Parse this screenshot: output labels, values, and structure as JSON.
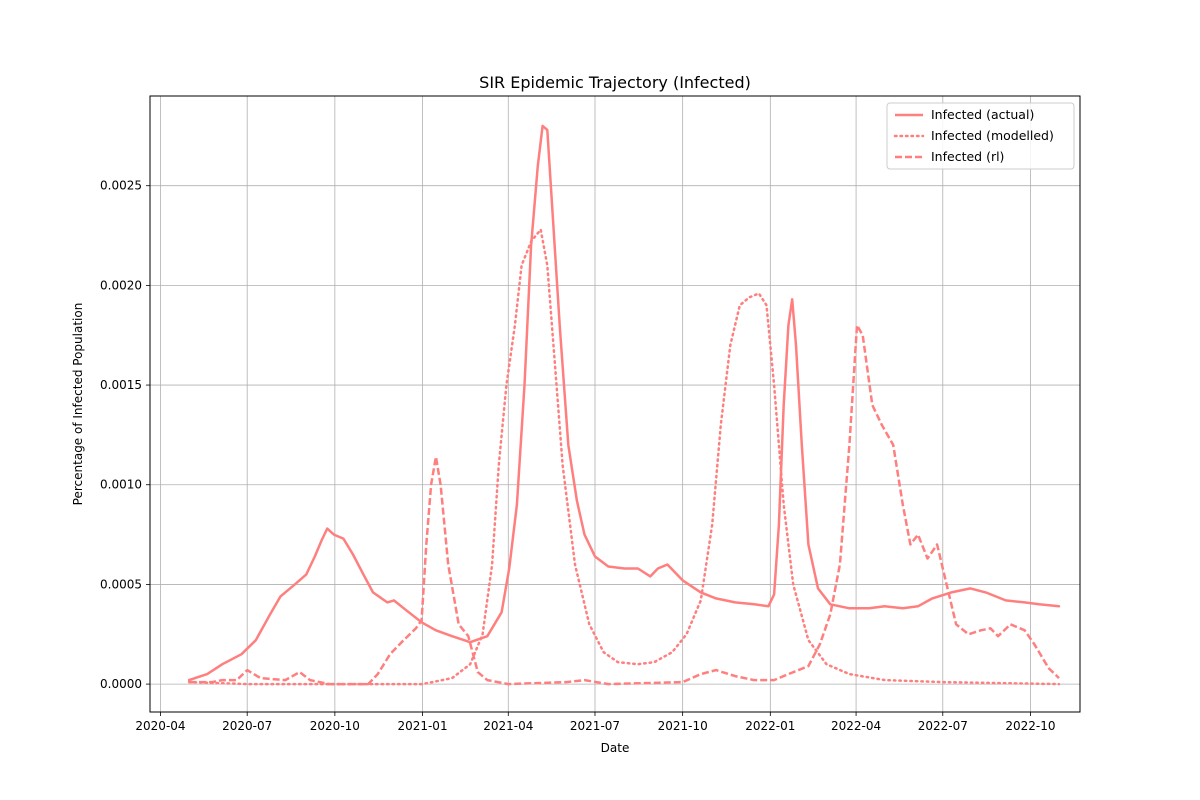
{
  "chart_data": {
    "type": "line",
    "title": "SIR Epidemic Trajectory (Infected)",
    "xlabel": "Date",
    "ylabel": "Percentage of Infected Population",
    "xlim": [
      "2020-03-21",
      "2022-11-22"
    ],
    "ylim": [
      -0.00014,
      0.00295
    ],
    "x_ticks": [
      "2020-04-01",
      "2020-07-01",
      "2020-10-01",
      "2021-01-01",
      "2021-04-01",
      "2021-07-01",
      "2021-10-01",
      "2022-01-01",
      "2022-04-01",
      "2022-07-01",
      "2022-10-01"
    ],
    "x_tick_labels": [
      "2020-04",
      "2020-07",
      "2020-10",
      "2021-01",
      "2021-04",
      "2021-07",
      "2021-10",
      "2022-01",
      "2022-04",
      "2022-07",
      "2022-10"
    ],
    "y_ticks": [
      0,
      0.0005,
      0.001,
      0.0015,
      0.002,
      0.0025
    ],
    "y_tick_labels": [
      "0.0000",
      "0.0005",
      "0.0010",
      "0.0015",
      "0.0020",
      "0.0025"
    ],
    "grid": true,
    "legend": "top-right",
    "color": "#ff7f7f",
    "series": [
      {
        "name": "Infected (actual)",
        "style": "solid",
        "points": [
          [
            "2020-05-01",
            2e-05
          ],
          [
            "2020-05-20",
            5e-05
          ],
          [
            "2020-06-05",
            0.0001
          ],
          [
            "2020-06-25",
            0.00015
          ],
          [
            "2020-07-10",
            0.00022
          ],
          [
            "2020-07-25",
            0.00035
          ],
          [
            "2020-08-05",
            0.00044
          ],
          [
            "2020-08-20",
            0.0005
          ],
          [
            "2020-09-01",
            0.00055
          ],
          [
            "2020-09-10",
            0.00064
          ],
          [
            "2020-09-17",
            0.00072
          ],
          [
            "2020-09-23",
            0.00078
          ],
          [
            "2020-09-30",
            0.00075
          ],
          [
            "2020-10-10",
            0.00073
          ],
          [
            "2020-10-20",
            0.00065
          ],
          [
            "2020-10-31",
            0.00055
          ],
          [
            "2020-11-10",
            0.00046
          ],
          [
            "2020-11-25",
            0.00041
          ],
          [
            "2020-12-02",
            0.00042
          ],
          [
            "2020-12-15",
            0.00037
          ],
          [
            "2020-12-31",
            0.00031
          ],
          [
            "2021-01-15",
            0.00027
          ],
          [
            "2021-02-01",
            0.00024
          ],
          [
            "2021-02-20",
            0.00021
          ],
          [
            "2021-03-10",
            0.00024
          ],
          [
            "2021-03-25",
            0.00036
          ],
          [
            "2021-04-02",
            0.00058
          ],
          [
            "2021-04-10",
            0.0009
          ],
          [
            "2021-04-18",
            0.0015
          ],
          [
            "2021-04-25",
            0.0022
          ],
          [
            "2021-05-02",
            0.0026
          ],
          [
            "2021-05-07",
            0.0028
          ],
          [
            "2021-05-12",
            0.00278
          ],
          [
            "2021-05-17",
            0.0024
          ],
          [
            "2021-05-25",
            0.0018
          ],
          [
            "2021-06-03",
            0.0012
          ],
          [
            "2021-06-12",
            0.00092
          ],
          [
            "2021-06-20",
            0.00075
          ],
          [
            "2021-07-01",
            0.00064
          ],
          [
            "2021-07-15",
            0.00059
          ],
          [
            "2021-08-01",
            0.00058
          ],
          [
            "2021-08-15",
            0.00058
          ],
          [
            "2021-08-28",
            0.00054
          ],
          [
            "2021-09-05",
            0.00058
          ],
          [
            "2021-09-15",
            0.0006
          ],
          [
            "2021-10-01",
            0.00052
          ],
          [
            "2021-10-20",
            0.00046
          ],
          [
            "2021-11-05",
            0.00043
          ],
          [
            "2021-11-25",
            0.00041
          ],
          [
            "2021-12-15",
            0.0004
          ],
          [
            "2021-12-30",
            0.00039
          ],
          [
            "2022-01-05",
            0.00045
          ],
          [
            "2022-01-10",
            0.0008
          ],
          [
            "2022-01-15",
            0.0014
          ],
          [
            "2022-01-20",
            0.0018
          ],
          [
            "2022-01-24",
            0.00193
          ],
          [
            "2022-01-28",
            0.0017
          ],
          [
            "2022-02-03",
            0.0012
          ],
          [
            "2022-02-10",
            0.0007
          ],
          [
            "2022-02-20",
            0.00048
          ],
          [
            "2022-03-05",
            0.0004
          ],
          [
            "2022-03-25",
            0.00038
          ],
          [
            "2022-04-15",
            0.00038
          ],
          [
            "2022-05-01",
            0.00039
          ],
          [
            "2022-05-20",
            0.00038
          ],
          [
            "2022-06-05",
            0.00039
          ],
          [
            "2022-06-20",
            0.00043
          ],
          [
            "2022-07-10",
            0.00046
          ],
          [
            "2022-07-30",
            0.00048
          ],
          [
            "2022-08-15",
            0.00046
          ],
          [
            "2022-09-05",
            0.00042
          ],
          [
            "2022-09-25",
            0.00041
          ],
          [
            "2022-10-10",
            0.0004
          ],
          [
            "2022-10-31",
            0.00039
          ]
        ]
      },
      {
        "name": "Infected (modelled)",
        "style": "dotted",
        "points": [
          [
            "2020-05-01",
            1e-05
          ],
          [
            "2020-07-01",
            0
          ],
          [
            "2020-10-01",
            0
          ],
          [
            "2021-01-01",
            0
          ],
          [
            "2021-02-01",
            3e-05
          ],
          [
            "2021-02-20",
            0.0001
          ],
          [
            "2021-03-05",
            0.00025
          ],
          [
            "2021-03-15",
            0.0006
          ],
          [
            "2021-03-22",
            0.0011
          ],
          [
            "2021-03-30",
            0.0015
          ],
          [
            "2021-04-08",
            0.0018
          ],
          [
            "2021-04-15",
            0.0021
          ],
          [
            "2021-04-25",
            0.00222
          ],
          [
            "2021-05-05",
            0.00228
          ],
          [
            "2021-05-12",
            0.0021
          ],
          [
            "2021-05-20",
            0.0016
          ],
          [
            "2021-05-28",
            0.0011
          ],
          [
            "2021-06-10",
            0.0006
          ],
          [
            "2021-06-25",
            0.0003
          ],
          [
            "2021-07-10",
            0.00016
          ],
          [
            "2021-07-25",
            0.00011
          ],
          [
            "2021-08-15",
            0.0001
          ],
          [
            "2021-09-01",
            0.00011
          ],
          [
            "2021-09-20",
            0.00016
          ],
          [
            "2021-10-05",
            0.00025
          ],
          [
            "2021-10-20",
            0.00042
          ],
          [
            "2021-11-01",
            0.0008
          ],
          [
            "2021-11-10",
            0.0013
          ],
          [
            "2021-11-20",
            0.0017
          ],
          [
            "2021-11-30",
            0.0019
          ],
          [
            "2021-12-10",
            0.00194
          ],
          [
            "2021-12-20",
            0.00196
          ],
          [
            "2021-12-28",
            0.0019
          ],
          [
            "2022-01-05",
            0.0015
          ],
          [
            "2022-01-15",
            0.0009
          ],
          [
            "2022-01-25",
            0.0005
          ],
          [
            "2022-02-10",
            0.00022
          ],
          [
            "2022-03-01",
            0.0001
          ],
          [
            "2022-03-25",
            5e-05
          ],
          [
            "2022-05-01",
            2e-05
          ],
          [
            "2022-07-01",
            1e-05
          ],
          [
            "2022-10-31",
            0
          ]
        ]
      },
      {
        "name": "Infected (rl)",
        "style": "dashed",
        "points": [
          [
            "2020-05-01",
            1e-05
          ],
          [
            "2020-05-25",
            1e-05
          ],
          [
            "2020-06-05",
            2e-05
          ],
          [
            "2020-06-20",
            2e-05
          ],
          [
            "2020-07-01",
            7e-05
          ],
          [
            "2020-07-15",
            3e-05
          ],
          [
            "2020-08-10",
            2e-05
          ],
          [
            "2020-08-25",
            6e-05
          ],
          [
            "2020-09-05",
            2e-05
          ],
          [
            "2020-09-25",
            0
          ],
          [
            "2020-11-05",
            0
          ],
          [
            "2020-11-15",
            5e-05
          ],
          [
            "2020-11-28",
            0.00015
          ],
          [
            "2020-12-10",
            0.00021
          ],
          [
            "2020-12-25",
            0.00028
          ],
          [
            "2020-12-31",
            0.00032
          ],
          [
            "2021-01-05",
            0.0007
          ],
          [
            "2021-01-10",
            0.001
          ],
          [
            "2021-01-15",
            0.00114
          ],
          [
            "2021-01-20",
            0.001
          ],
          [
            "2021-01-28",
            0.0006
          ],
          [
            "2021-02-08",
            0.0003
          ],
          [
            "2021-02-18",
            0.00024
          ],
          [
            "2021-02-28",
            6e-05
          ],
          [
            "2021-03-10",
            2e-05
          ],
          [
            "2021-04-01",
            0
          ],
          [
            "2021-06-01",
            1e-05
          ],
          [
            "2021-06-20",
            2e-05
          ],
          [
            "2021-07-15",
            0
          ],
          [
            "2021-10-01",
            1e-05
          ],
          [
            "2021-10-20",
            5e-05
          ],
          [
            "2021-11-05",
            7e-05
          ],
          [
            "2021-11-25",
            4e-05
          ],
          [
            "2021-12-15",
            2e-05
          ],
          [
            "2022-01-05",
            2e-05
          ],
          [
            "2022-01-20",
            5e-05
          ],
          [
            "2022-02-10",
            9e-05
          ],
          [
            "2022-02-22",
            0.0002
          ],
          [
            "2022-03-05",
            0.00035
          ],
          [
            "2022-03-15",
            0.0006
          ],
          [
            "2022-03-25",
            0.0012
          ],
          [
            "2022-04-02",
            0.0018
          ],
          [
            "2022-04-08",
            0.00175
          ],
          [
            "2022-04-18",
            0.0014
          ],
          [
            "2022-04-28",
            0.0013
          ],
          [
            "2022-05-10",
            0.0012
          ],
          [
            "2022-05-20",
            0.0009
          ],
          [
            "2022-05-28",
            0.0007
          ],
          [
            "2022-06-05",
            0.00075
          ],
          [
            "2022-06-15",
            0.00063
          ],
          [
            "2022-06-25",
            0.0007
          ],
          [
            "2022-07-05",
            0.0005
          ],
          [
            "2022-07-15",
            0.0003
          ],
          [
            "2022-07-28",
            0.00025
          ],
          [
            "2022-08-10",
            0.00027
          ],
          [
            "2022-08-20",
            0.00028
          ],
          [
            "2022-08-28",
            0.00024
          ],
          [
            "2022-09-10",
            0.0003
          ],
          [
            "2022-09-25",
            0.00027
          ],
          [
            "2022-10-05",
            0.0002
          ],
          [
            "2022-10-20",
            8e-05
          ],
          [
            "2022-10-31",
            3e-05
          ]
        ]
      }
    ]
  }
}
